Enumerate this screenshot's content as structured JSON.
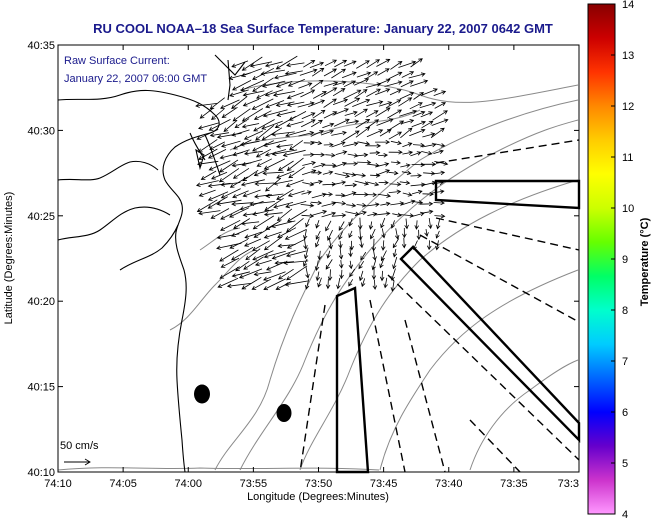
{
  "chart_data": {
    "type": "map",
    "title": "RU COOL  NOAA–18  Sea Surface Temperature:  January 22, 2007 0642 GMT",
    "xlabel": "Longitude (Degrees:Minutes)",
    "ylabel": "Latitude (Degrees:Minutes)",
    "x_ticks": [
      "74:10",
      "74:05",
      "74:00",
      "73:55",
      "73:50",
      "73:45",
      "73:40",
      "73:35",
      "73:3"
    ],
    "y_ticks": [
      "40:35",
      "40:30",
      "40:25",
      "40:20",
      "40:15",
      "40:10"
    ],
    "overlay_text": [
      "Raw Surface Current:",
      "January 22, 2007 06:00 GMT"
    ],
    "scale_label": "50 cm/s",
    "colorbar": {
      "label": "Temperature (°C)",
      "min": 4,
      "max": 14,
      "ticks": [
        "14",
        "13",
        "12",
        "11",
        "10",
        "9",
        "8",
        "7",
        "6",
        "5",
        "4"
      ],
      "colors": [
        "#ff99ff",
        "#cc33cc",
        "#6600cc",
        "#0000ff",
        "#0066ff",
        "#00ccff",
        "#00ffcc",
        "#00ff66",
        "#66ff00",
        "#ccff00",
        "#ffff00",
        "#ffcc00",
        "#ff8800",
        "#ff3300",
        "#cc0000",
        "#880000"
      ]
    }
  }
}
